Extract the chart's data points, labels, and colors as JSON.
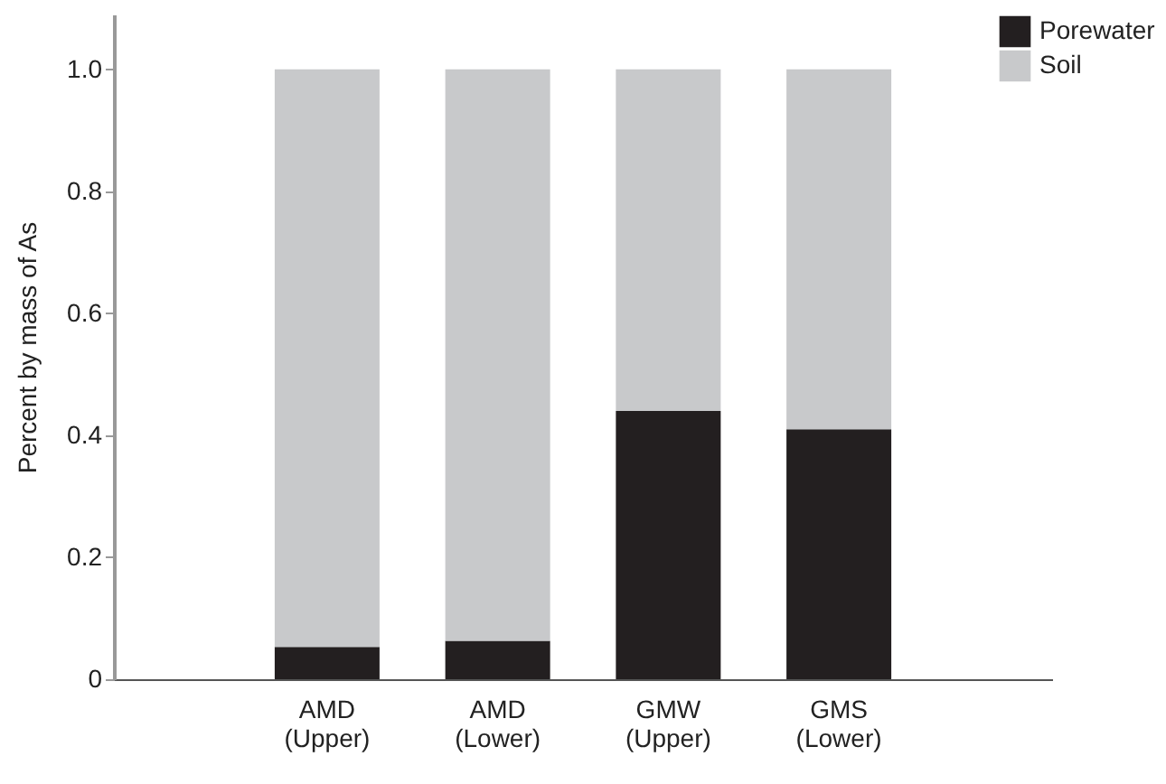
{
  "chart_data": {
    "type": "bar",
    "stacked": true,
    "ylabel": "Percent by mass of As",
    "categories": [
      "AMD (Upper)",
      "AMD (Lower)",
      "GMW (Upper)",
      "GMS (Lower)"
    ],
    "series": [
      {
        "name": "Porewater",
        "color": "#231f20",
        "values": [
          0.053,
          0.063,
          0.44,
          0.41
        ]
      },
      {
        "name": "Soil",
        "color": "#c8c9cb",
        "values": [
          0.947,
          0.937,
          0.56,
          0.59
        ]
      }
    ],
    "ylim": [
      0,
      1.09
    ],
    "yticks": [
      {
        "value": 0,
        "label": "0"
      },
      0.2,
      0.4,
      0.6,
      0.8,
      {
        "value": 1,
        "label": "1.0"
      }
    ],
    "grid": false,
    "legend": "top right"
  }
}
